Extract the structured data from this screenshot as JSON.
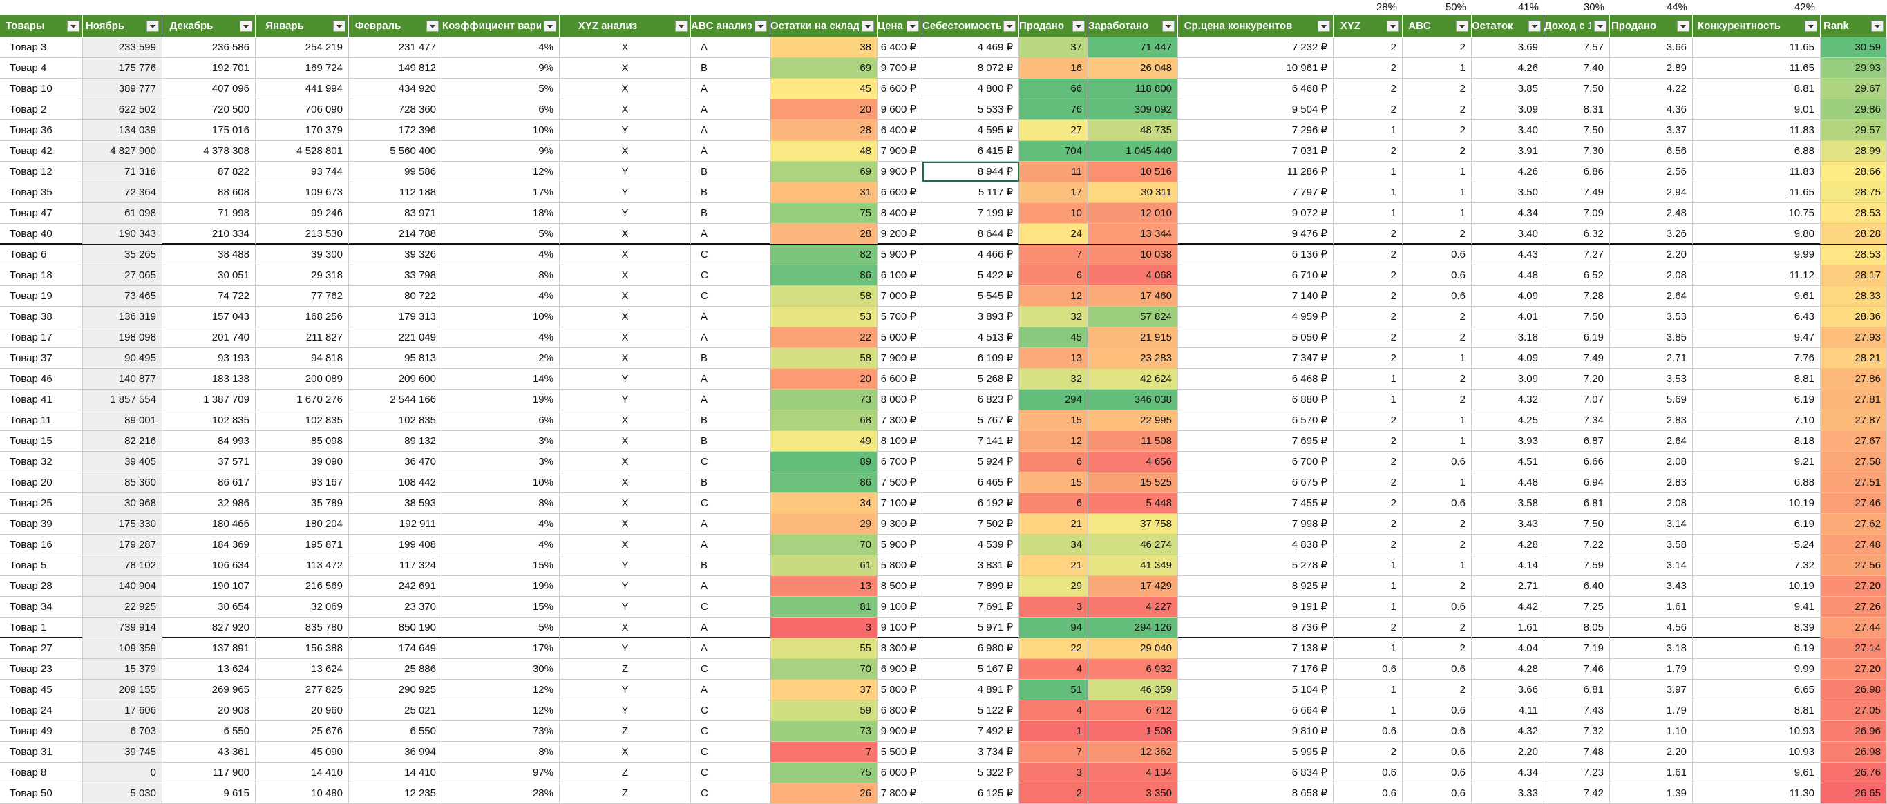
{
  "percentages": [
    "28%",
    "50%",
    "41%",
    "30%",
    "44%",
    "42%"
  ],
  "headers": [
    "Товары",
    "Ноябрь",
    "Декабрь",
    "Январь",
    "Февраль",
    "Коэффициент вариации",
    "XYZ анализ",
    "ABC анализ",
    "Остатки на складе",
    "Цена",
    "Себестоимость",
    "Продано",
    "Заработано",
    "Ср.цена конкурентов",
    "XYZ",
    "ABC",
    "Остаток",
    "Доход с 1",
    "Продано",
    "Конкурентность",
    "Rank"
  ],
  "rows": [
    [
      "Товар 3",
      "233 599",
      "236 586",
      "254 219",
      "231 477",
      "4%",
      "X",
      "A",
      "38",
      "6 400 ₽",
      "4 469 ₽",
      "37",
      "71 447",
      "7 232 ₽",
      "2",
      "2",
      "3.69",
      "7.57",
      "3.66",
      "11.65",
      "30.59"
    ],
    [
      "Товар 4",
      "175 776",
      "192 701",
      "169 724",
      "149 812",
      "9%",
      "X",
      "B",
      "69",
      "9 700 ₽",
      "8 072 ₽",
      "16",
      "26 048",
      "10 961 ₽",
      "2",
      "1",
      "4.26",
      "7.40",
      "2.89",
      "11.65",
      "29.93"
    ],
    [
      "Товар 10",
      "389 777",
      "407 096",
      "441 994",
      "434 920",
      "5%",
      "X",
      "A",
      "45",
      "6 600 ₽",
      "4 800 ₽",
      "66",
      "118 800",
      "6 468 ₽",
      "2",
      "2",
      "3.85",
      "7.50",
      "4.22",
      "8.81",
      "29.67"
    ],
    [
      "Товар 2",
      "622 502",
      "720 500",
      "706 090",
      "728 360",
      "6%",
      "X",
      "A",
      "20",
      "9 600 ₽",
      "5 533 ₽",
      "76",
      "309 092",
      "9 504 ₽",
      "2",
      "2",
      "3.09",
      "8.31",
      "4.36",
      "9.01",
      "29.86"
    ],
    [
      "Товар 36",
      "134 039",
      "175 016",
      "170 379",
      "172 396",
      "10%",
      "Y",
      "A",
      "28",
      "6 400 ₽",
      "4 595 ₽",
      "27",
      "48 735",
      "7 296 ₽",
      "1",
      "2",
      "3.40",
      "7.50",
      "3.37",
      "11.83",
      "29.57"
    ],
    [
      "Товар 42",
      "4 827 900",
      "4 378 308",
      "4 528 801",
      "5 560 400",
      "9%",
      "X",
      "A",
      "48",
      "7 900 ₽",
      "6 415 ₽",
      "704",
      "1 045 440",
      "7 031 ₽",
      "2",
      "2",
      "3.91",
      "7.30",
      "6.56",
      "6.88",
      "28.99"
    ],
    [
      "Товар 12",
      "71 316",
      "87 822",
      "93 744",
      "99 586",
      "12%",
      "Y",
      "B",
      "69",
      "9 900 ₽",
      "8 944 ₽",
      "11",
      "10 516",
      "11 286 ₽",
      "1",
      "1",
      "4.26",
      "6.86",
      "2.56",
      "11.83",
      "28.66"
    ],
    [
      "Товар 35",
      "72 364",
      "88 608",
      "109 673",
      "112 188",
      "17%",
      "Y",
      "B",
      "31",
      "6 600 ₽",
      "5 117 ₽",
      "17",
      "30 311",
      "7 797 ₽",
      "1",
      "1",
      "3.50",
      "7.49",
      "2.94",
      "11.65",
      "28.75"
    ],
    [
      "Товар 47",
      "61 098",
      "71 998",
      "99 246",
      "83 971",
      "18%",
      "Y",
      "B",
      "75",
      "8 400 ₽",
      "7 199 ₽",
      "10",
      "12 010",
      "9 072 ₽",
      "1",
      "1",
      "4.34",
      "7.09",
      "2.48",
      "10.75",
      "28.53"
    ],
    [
      "Товар 40",
      "190 343",
      "210 334",
      "213 530",
      "214 788",
      "5%",
      "X",
      "A",
      "28",
      "9 200 ₽",
      "8 644 ₽",
      "24",
      "13 344",
      "9 476 ₽",
      "2",
      "2",
      "3.40",
      "6.32",
      "3.26",
      "9.80",
      "28.28"
    ],
    [
      "Товар 6",
      "35 265",
      "38 488",
      "39 300",
      "39 326",
      "4%",
      "X",
      "C",
      "82",
      "5 900 ₽",
      "4 466 ₽",
      "7",
      "10 038",
      "6 136 ₽",
      "2",
      "0.6",
      "4.43",
      "7.27",
      "2.20",
      "9.99",
      "28.53"
    ],
    [
      "Товар 18",
      "27 065",
      "30 051",
      "29 318",
      "33 798",
      "8%",
      "X",
      "C",
      "86",
      "6 100 ₽",
      "5 422 ₽",
      "6",
      "4 068",
      "6 710 ₽",
      "2",
      "0.6",
      "4.48",
      "6.52",
      "2.08",
      "11.12",
      "28.17"
    ],
    [
      "Товар 19",
      "73 465",
      "74 722",
      "77 762",
      "80 722",
      "4%",
      "X",
      "C",
      "58",
      "7 000 ₽",
      "5 545 ₽",
      "12",
      "17 460",
      "7 140 ₽",
      "2",
      "0.6",
      "4.09",
      "7.28",
      "2.64",
      "9.61",
      "28.33"
    ],
    [
      "Товар 38",
      "136 319",
      "157 043",
      "168 256",
      "179 313",
      "10%",
      "X",
      "A",
      "53",
      "5 700 ₽",
      "3 893 ₽",
      "32",
      "57 824",
      "4 959 ₽",
      "2",
      "2",
      "4.01",
      "7.50",
      "3.53",
      "6.43",
      "28.36"
    ],
    [
      "Товар 17",
      "198 098",
      "201 740",
      "211 827",
      "221 049",
      "4%",
      "X",
      "A",
      "22",
      "5 000 ₽",
      "4 513 ₽",
      "45",
      "21 915",
      "5 050 ₽",
      "2",
      "2",
      "3.18",
      "6.19",
      "3.85",
      "9.47",
      "27.93"
    ],
    [
      "Товар 37",
      "90 495",
      "93 193",
      "94 818",
      "95 813",
      "2%",
      "X",
      "B",
      "58",
      "7 900 ₽",
      "6 109 ₽",
      "13",
      "23 283",
      "7 347 ₽",
      "2",
      "1",
      "4.09",
      "7.49",
      "2.71",
      "7.76",
      "28.21"
    ],
    [
      "Товар 46",
      "140 877",
      "183 138",
      "200 089",
      "209 600",
      "14%",
      "Y",
      "A",
      "20",
      "6 600 ₽",
      "5 268 ₽",
      "32",
      "42 624",
      "6 468 ₽",
      "1",
      "2",
      "3.09",
      "7.20",
      "3.53",
      "8.81",
      "27.86"
    ],
    [
      "Товар 41",
      "1 857 554",
      "1 387 709",
      "1 670 276",
      "2 544 166",
      "19%",
      "Y",
      "A",
      "73",
      "8 000 ₽",
      "6 823 ₽",
      "294",
      "346 038",
      "6 880 ₽",
      "1",
      "2",
      "4.32",
      "7.07",
      "5.69",
      "6.19",
      "27.81"
    ],
    [
      "Товар 11",
      "89 001",
      "102 835",
      "102 835",
      "102 835",
      "6%",
      "X",
      "B",
      "68",
      "7 300 ₽",
      "5 767 ₽",
      "15",
      "22 995",
      "6 570 ₽",
      "2",
      "1",
      "4.25",
      "7.34",
      "2.83",
      "7.10",
      "27.87"
    ],
    [
      "Товар 15",
      "82 216",
      "84 993",
      "85 098",
      "89 132",
      "3%",
      "X",
      "B",
      "49",
      "8 100 ₽",
      "7 141 ₽",
      "12",
      "11 508",
      "7 695 ₽",
      "2",
      "1",
      "3.93",
      "6.87",
      "2.64",
      "8.18",
      "27.67"
    ],
    [
      "Товар 32",
      "39 405",
      "37 571",
      "39 090",
      "36 470",
      "3%",
      "X",
      "C",
      "89",
      "6 700 ₽",
      "5 924 ₽",
      "6",
      "4 656",
      "6 700 ₽",
      "2",
      "0.6",
      "4.51",
      "6.66",
      "2.08",
      "9.21",
      "27.58"
    ],
    [
      "Товар 20",
      "85 360",
      "86 617",
      "93 167",
      "108 442",
      "10%",
      "X",
      "B",
      "86",
      "7 500 ₽",
      "6 465 ₽",
      "15",
      "15 525",
      "6 675 ₽",
      "2",
      "1",
      "4.48",
      "6.94",
      "2.83",
      "6.88",
      "27.51"
    ],
    [
      "Товар 25",
      "30 968",
      "32 986",
      "35 789",
      "38 593",
      "8%",
      "X",
      "C",
      "34",
      "7 100 ₽",
      "6 192 ₽",
      "6",
      "5 448",
      "7 455 ₽",
      "2",
      "0.6",
      "3.58",
      "6.81",
      "2.08",
      "10.19",
      "27.46"
    ],
    [
      "Товар 39",
      "175 330",
      "180 466",
      "180 204",
      "192 911",
      "4%",
      "X",
      "A",
      "29",
      "9 300 ₽",
      "7 502 ₽",
      "21",
      "37 758",
      "7 998 ₽",
      "2",
      "2",
      "3.43",
      "7.50",
      "3.14",
      "6.19",
      "27.62"
    ],
    [
      "Товар 16",
      "179 287",
      "184 369",
      "195 871",
      "199 408",
      "4%",
      "X",
      "A",
      "70",
      "5 900 ₽",
      "4 539 ₽",
      "34",
      "46 274",
      "4 838 ₽",
      "2",
      "2",
      "4.28",
      "7.22",
      "3.58",
      "5.24",
      "27.48"
    ],
    [
      "Товар 5",
      "78 102",
      "106 634",
      "113 472",
      "117 324",
      "15%",
      "Y",
      "B",
      "61",
      "5 800 ₽",
      "3 831 ₽",
      "21",
      "41 349",
      "5 278 ₽",
      "1",
      "1",
      "4.14",
      "7.59",
      "3.14",
      "7.32",
      "27.56"
    ],
    [
      "Товар 28",
      "140 904",
      "190 107",
      "216 569",
      "242 691",
      "19%",
      "Y",
      "A",
      "13",
      "8 500 ₽",
      "7 899 ₽",
      "29",
      "17 429",
      "8 925 ₽",
      "1",
      "2",
      "2.71",
      "6.40",
      "3.43",
      "10.19",
      "27.20"
    ],
    [
      "Товар 34",
      "22 925",
      "30 654",
      "32 069",
      "23 370",
      "15%",
      "Y",
      "C",
      "81",
      "9 100 ₽",
      "7 691 ₽",
      "3",
      "4 227",
      "9 191 ₽",
      "1",
      "0.6",
      "4.42",
      "7.25",
      "1.61",
      "9.41",
      "27.26"
    ],
    [
      "Товар 1",
      "739 914",
      "827 920",
      "835 780",
      "850 190",
      "5%",
      "X",
      "A",
      "3",
      "9 100 ₽",
      "5 971 ₽",
      "94",
      "294 126",
      "8 736 ₽",
      "2",
      "2",
      "1.61",
      "8.05",
      "4.56",
      "8.39",
      "27.44"
    ],
    [
      "Товар 27",
      "109 359",
      "137 891",
      "156 388",
      "174 649",
      "17%",
      "Y",
      "A",
      "55",
      "8 300 ₽",
      "6 980 ₽",
      "22",
      "29 040",
      "7 138 ₽",
      "1",
      "2",
      "4.04",
      "7.19",
      "3.18",
      "6.19",
      "27.14"
    ],
    [
      "Товар 23",
      "15 379",
      "13 624",
      "13 624",
      "25 886",
      "30%",
      "Z",
      "C",
      "70",
      "6 900 ₽",
      "5 167 ₽",
      "4",
      "6 932",
      "7 176 ₽",
      "0.6",
      "0.6",
      "4.28",
      "7.46",
      "1.79",
      "9.99",
      "27.20"
    ],
    [
      "Товар 45",
      "209 155",
      "269 965",
      "277 825",
      "290 925",
      "12%",
      "Y",
      "A",
      "37",
      "5 800 ₽",
      "4 891 ₽",
      "51",
      "46 359",
      "5 104 ₽",
      "1",
      "2",
      "3.66",
      "6.81",
      "3.97",
      "6.65",
      "26.98"
    ],
    [
      "Товар 24",
      "17 606",
      "20 908",
      "20 960",
      "25 021",
      "12%",
      "Y",
      "C",
      "59",
      "6 800 ₽",
      "5 122 ₽",
      "4",
      "6 712",
      "6 664 ₽",
      "1",
      "0.6",
      "4.11",
      "7.43",
      "1.79",
      "8.81",
      "27.05"
    ],
    [
      "Товар 49",
      "6 703",
      "6 550",
      "25 676",
      "6 550",
      "73%",
      "Z",
      "C",
      "73",
      "9 900 ₽",
      "7 492 ₽",
      "1",
      "1 508",
      "9 810 ₽",
      "0.6",
      "0.6",
      "4.32",
      "7.32",
      "1.10",
      "10.93",
      "26.96"
    ],
    [
      "Товар 31",
      "39 745",
      "43 361",
      "45 090",
      "36 994",
      "8%",
      "X",
      "C",
      "7",
      "5 500 ₽",
      "3 734 ₽",
      "7",
      "12 362",
      "5 995 ₽",
      "2",
      "0.6",
      "2.20",
      "7.48",
      "2.20",
      "10.93",
      "26.98"
    ],
    [
      "Товар 8",
      "0",
      "117 900",
      "14 410",
      "14 410",
      "97%",
      "Z",
      "C",
      "75",
      "6 000 ₽",
      "5 322 ₽",
      "3",
      "4 134",
      "6 834 ₽",
      "0.6",
      "0.6",
      "4.34",
      "7.23",
      "1.61",
      "9.61",
      "26.76"
    ],
    [
      "Товар 50",
      "5 030",
      "9 615",
      "10 480",
      "12 235",
      "28%",
      "Z",
      "C",
      "26",
      "7 800 ₽",
      "6 125 ₽",
      "2",
      "3 350",
      "8 658 ₽",
      "0.6",
      "0.6",
      "3.33",
      "7.42",
      "1.39",
      "11.30",
      "26.65"
    ]
  ],
  "colors": {
    "header_green": "#4e8f2f",
    "scale_red": "#f8696b",
    "scale_yellow": "#ffeb84",
    "scale_green": "#63be7b"
  }
}
